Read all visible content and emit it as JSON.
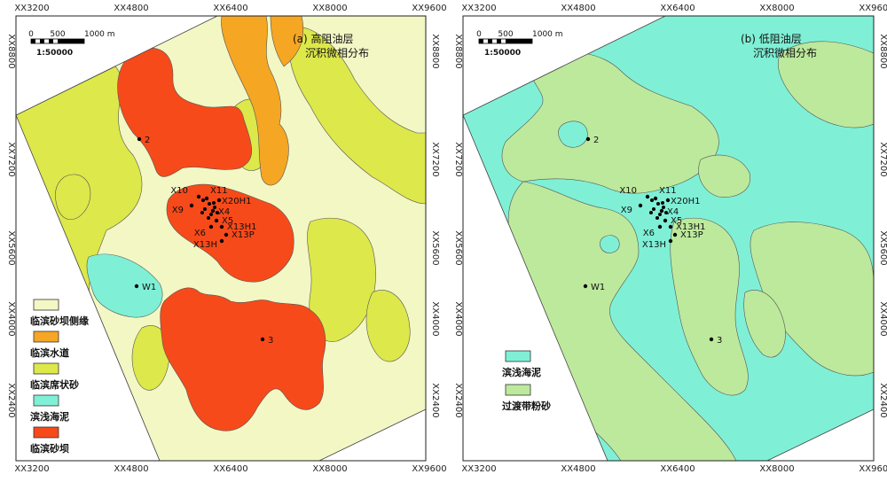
{
  "colors": {
    "sandbar_flank": "#f3f7c4",
    "channel": "#f5a623",
    "sheet_sand": "#dde84a",
    "offshore_mud": "#7ff0d6",
    "sandbar": "#f74a1a",
    "transition_silt": "#bde99c",
    "outside": "#ffffff"
  },
  "axis_ticks": {
    "x": [
      "XX3200",
      "XX4800",
      "XX6400",
      "XX8000",
      "XX9600"
    ],
    "y": [
      "XX8800",
      "XX7200",
      "XX5600",
      "XX4000",
      "XX2400"
    ]
  },
  "scale_bar": {
    "labels": [
      "0",
      "500",
      "1000 m"
    ],
    "ratio": "1:50000"
  },
  "panels": [
    {
      "id": "a",
      "label": "(a)",
      "title_line1": "高阻油层",
      "title_line2": "沉积微相分布",
      "legend": [
        {
          "label": "临滨砂坝侧缘",
          "color": "#f3f7c4"
        },
        {
          "label": "临滨水道",
          "color": "#f5a623"
        },
        {
          "label": "临滨席状砂",
          "color": "#dde84a"
        },
        {
          "label": "滨浅海泥",
          "color": "#7ff0d6"
        },
        {
          "label": "临滨砂坝",
          "color": "#f74a1a"
        }
      ]
    },
    {
      "id": "b",
      "label": "(b)",
      "title_line1": "低阻油层",
      "title_line2": "沉积微相分布",
      "legend": [
        {
          "label": "滨浅海泥",
          "color": "#7ff0d6"
        },
        {
          "label": "过渡带粉砂",
          "color": "#bde99c"
        }
      ]
    }
  ],
  "wells": [
    {
      "name": "2"
    },
    {
      "name": "X10"
    },
    {
      "name": "X11"
    },
    {
      "name": "X20H1"
    },
    {
      "name": "X9"
    },
    {
      "name": "X4"
    },
    {
      "name": "X5"
    },
    {
      "name": "X13H1"
    },
    {
      "name": "X6"
    },
    {
      "name": "X13P"
    },
    {
      "name": "X13H"
    },
    {
      "name": "W1"
    },
    {
      "name": "3"
    }
  ]
}
